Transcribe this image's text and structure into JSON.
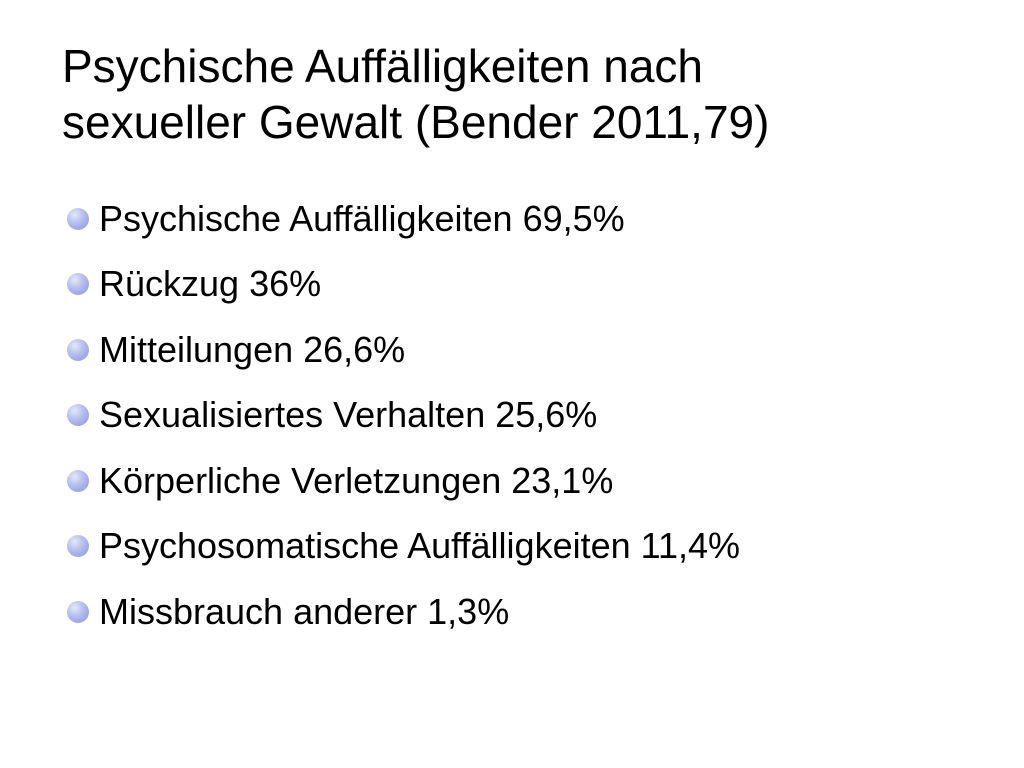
{
  "slide": {
    "title_lines": [
      "Psychische Auffälligkeiten nach",
      "sexueller Gewalt (Bender 2011,79)"
    ],
    "bullet_color": "#aab4ea",
    "bullets": [
      {
        "text": "Psychische Auffälligkeiten 69,5%"
      },
      {
        "text": "Rückzug 36%"
      },
      {
        "text": "Mitteilungen 26,6%"
      },
      {
        "text": "Sexualisiertes Verhalten 25,6%"
      },
      {
        "text": "Körperliche Verletzungen 23,1%"
      },
      {
        "text": "Psychosomatische Auffälligkeiten 11,4%"
      },
      {
        "text": "Missbrauch anderer 1,3%"
      }
    ]
  }
}
